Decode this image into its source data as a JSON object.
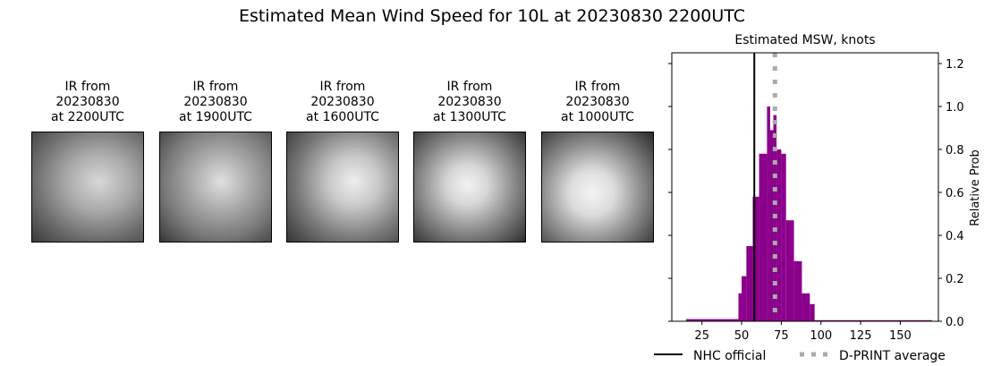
{
  "suptitle": "Estimated Mean Wind Speed for 10L at 20230830 2200UTC",
  "ir_panels": [
    {
      "title": "IR from\n20230830\nat 2200UTC",
      "variant": 0
    },
    {
      "title": "IR from\n20230830\nat 1900UTC",
      "variant": 1
    },
    {
      "title": "IR from\n20230830\nat 1600UTC",
      "variant": 2
    },
    {
      "title": "IR from\n20230830\nat 1300UTC",
      "variant": 3
    },
    {
      "title": "IR from\n20230830\nat 1000UTC",
      "variant": 4
    }
  ],
  "chart_data": {
    "type": "bar",
    "title": "Estimated MSW, knots",
    "xlabel": "",
    "ylabel": "Relative Prob",
    "xlim": [
      6,
      174
    ],
    "ylim": [
      0,
      1.25
    ],
    "xticks": [
      25,
      50,
      75,
      100,
      125,
      150
    ],
    "yticks": [
      0.0,
      0.2,
      0.4,
      0.6,
      0.8,
      1.0,
      1.2
    ],
    "ytick_labels": [
      "0.0",
      "0.2",
      "0.4",
      "0.6",
      "0.8",
      "1.0",
      "1.2"
    ],
    "yaxis_side": "right",
    "grid": false,
    "bar_color": "#8b008b",
    "bins": [
      {
        "x0": 15,
        "x1": 48,
        "y": 0.01
      },
      {
        "x0": 48,
        "x1": 50,
        "y": 0.13
      },
      {
        "x0": 50,
        "x1": 53,
        "y": 0.21
      },
      {
        "x0": 53,
        "x1": 57,
        "y": 0.35
      },
      {
        "x0": 57,
        "x1": 61,
        "y": 0.58
      },
      {
        "x0": 61,
        "x1": 66,
        "y": 0.78
      },
      {
        "x0": 66,
        "x1": 68,
        "y": 1.0
      },
      {
        "x0": 68,
        "x1": 70,
        "y": 0.89
      },
      {
        "x0": 70,
        "x1": 72,
        "y": 0.96
      },
      {
        "x0": 72,
        "x1": 75,
        "y": 0.8
      },
      {
        "x0": 75,
        "x1": 78,
        "y": 0.78
      },
      {
        "x0": 78,
        "x1": 83,
        "y": 0.47
      },
      {
        "x0": 83,
        "x1": 88,
        "y": 0.28
      },
      {
        "x0": 88,
        "x1": 93,
        "y": 0.13
      },
      {
        "x0": 93,
        "x1": 96,
        "y": 0.08
      },
      {
        "x0": 96,
        "x1": 170,
        "y": 0.005
      }
    ],
    "vlines": [
      {
        "name": "NHC official",
        "x": 58,
        "color": "#000000",
        "style": "solid"
      },
      {
        "name": "D-PRINT average",
        "x": 71,
        "color": "#aaaaaa",
        "style": "dotted"
      }
    ],
    "legend": [
      {
        "label": "NHC official",
        "style": "solid",
        "color": "#000000"
      },
      {
        "label": "D-PRINT average",
        "style": "dotted",
        "color": "#aaaaaa"
      }
    ],
    "legend_position": "below"
  }
}
